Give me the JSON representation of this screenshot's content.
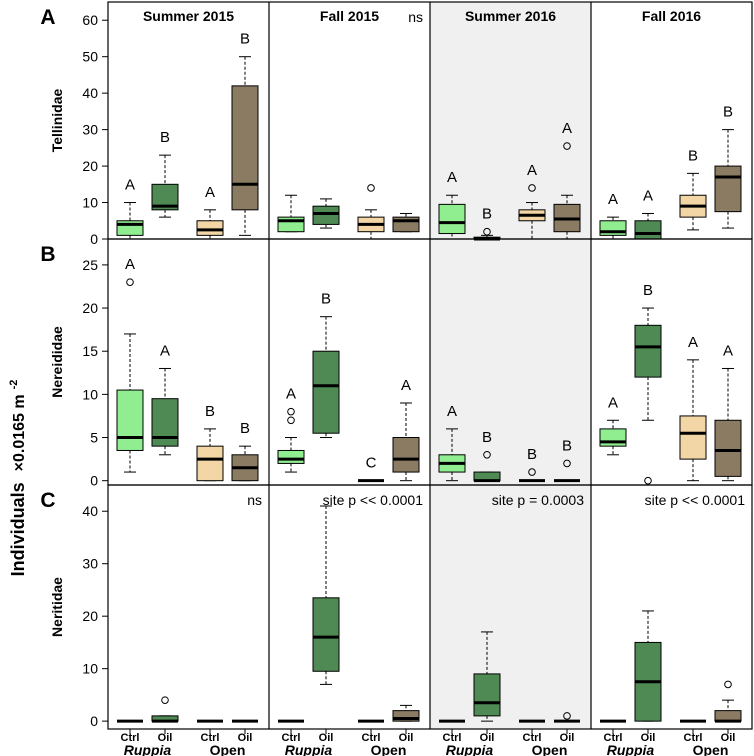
{
  "chart_data": {
    "type": "box",
    "ylabel_main": "Individuals",
    "ylabel_units": "×0.0165 m",
    "ylabel_exponent": "-2",
    "columns": [
      "Summer 2015",
      "Fall 2015",
      "Summer 2016",
      "Fall 2016"
    ],
    "categories": [
      "Ctrl",
      "Oil",
      "Ctrl",
      "Oil"
    ],
    "groups": [
      "Ruppia",
      "Open"
    ],
    "colors": {
      "ruppia_ctrl": "#90ee90",
      "ruppia_oil": "#4f8a55",
      "open_ctrl": "#f2d6a5",
      "open_oil": "#8b7b63",
      "shaded_bg": "#f0f0f0"
    },
    "panels": [
      {
        "letter": "A",
        "family": "Tellinidae",
        "ylim": [
          0,
          65
        ],
        "yticks": [
          0,
          10,
          20,
          30,
          40,
          50,
          60
        ],
        "annotations": [
          "",
          "ns",
          "",
          ""
        ],
        "boxes": [
          [
            {
              "whislo": 0,
              "q1": 1,
              "med": 4,
              "q3": 5,
              "whishi": 10,
              "fliers": [],
              "sig": "A"
            },
            {
              "whislo": 6,
              "q1": 8,
              "med": 9,
              "q3": 15,
              "whishi": 23,
              "fliers": [],
              "sig": "B"
            },
            {
              "whislo": 0,
              "q1": 1,
              "med": 2.5,
              "q3": 5,
              "whishi": 8,
              "fliers": [],
              "sig": "A"
            },
            {
              "whislo": 1,
              "q1": 8,
              "med": 15,
              "q3": 42,
              "whishi": 50,
              "fliers": [],
              "sig": "B"
            }
          ],
          [
            {
              "whislo": 2,
              "q1": 2,
              "med": 5,
              "q3": 6,
              "whishi": 12,
              "fliers": [],
              "sig": ""
            },
            {
              "whislo": 3,
              "q1": 4,
              "med": 7,
              "q3": 9,
              "whishi": 11,
              "fliers": [],
              "sig": ""
            },
            {
              "whislo": 0,
              "q1": 2,
              "med": 4,
              "q3": 6,
              "whishi": 8,
              "fliers": [
                14
              ],
              "sig": ""
            },
            {
              "whislo": 2,
              "q1": 2,
              "med": 5,
              "q3": 6,
              "whishi": 7,
              "fliers": [],
              "sig": ""
            }
          ],
          [
            {
              "whislo": 0,
              "q1": 1.5,
              "med": 4.5,
              "q3": 9.5,
              "whishi": 12,
              "fliers": [],
              "sig": "A"
            },
            {
              "whislo": 0,
              "q1": 0,
              "med": 0,
              "q3": 0.5,
              "whishi": 1,
              "fliers": [
                2
              ],
              "sig": "B"
            },
            {
              "whislo": 0,
              "q1": 5,
              "med": 6.5,
              "q3": 8,
              "whishi": 10,
              "fliers": [
                14
              ],
              "sig": "A"
            },
            {
              "whislo": 0,
              "q1": 2,
              "med": 5.5,
              "q3": 9.5,
              "whishi": 12,
              "fliers": [
                25.5
              ],
              "sig": "A"
            }
          ],
          [
            {
              "whislo": 0,
              "q1": 1,
              "med": 2,
              "q3": 5,
              "whishi": 6,
              "fliers": [],
              "sig": "A"
            },
            {
              "whislo": 0,
              "q1": 0,
              "med": 1.5,
              "q3": 5,
              "whishi": 7,
              "fliers": [],
              "sig": "A"
            },
            {
              "whislo": 2.5,
              "q1": 6,
              "med": 9,
              "q3": 12,
              "whishi": 18,
              "fliers": [],
              "sig": "B"
            },
            {
              "whislo": 3,
              "q1": 7.5,
              "med": 17,
              "q3": 20,
              "whishi": 30,
              "fliers": [],
              "sig": "B"
            }
          ]
        ]
      },
      {
        "letter": "B",
        "family": "Nereididae",
        "ylim": [
          -0.5,
          28
        ],
        "yticks": [
          0,
          5,
          10,
          15,
          20,
          25
        ],
        "annotations": [
          "",
          "",
          "",
          ""
        ],
        "boxes": [
          [
            {
              "whislo": 1,
              "q1": 3.5,
              "med": 5,
              "q3": 10.5,
              "whishi": 17,
              "fliers": [
                23
              ],
              "sig": "A"
            },
            {
              "whislo": 3,
              "q1": 4,
              "med": 5,
              "q3": 9.5,
              "whishi": 13,
              "fliers": [],
              "sig": "A"
            },
            {
              "whislo": 0,
              "q1": 0,
              "med": 2.5,
              "q3": 4,
              "whishi": 6,
              "fliers": [],
              "sig": "B"
            },
            {
              "whislo": 0,
              "q1": 0,
              "med": 1.5,
              "q3": 3,
              "whishi": 4,
              "fliers": [],
              "sig": "B"
            }
          ],
          [
            {
              "whislo": 1,
              "q1": 2,
              "med": 2.5,
              "q3": 3.5,
              "whishi": 5,
              "fliers": [
                7,
                8
              ],
              "sig": "A"
            },
            {
              "whislo": 5,
              "q1": 5.5,
              "med": 11,
              "q3": 15,
              "whishi": 19,
              "fliers": [],
              "sig": "B"
            },
            {
              "whislo": 0,
              "q1": 0,
              "med": 0,
              "q3": 0,
              "whishi": 0,
              "fliers": [],
              "sig": "C"
            },
            {
              "whislo": 0,
              "q1": 1,
              "med": 2.5,
              "q3": 5,
              "whishi": 9,
              "fliers": [],
              "sig": "A"
            }
          ],
          [
            {
              "whislo": 0,
              "q1": 1,
              "med": 2,
              "q3": 3,
              "whishi": 6,
              "fliers": [],
              "sig": "A"
            },
            {
              "whislo": 0,
              "q1": 0,
              "med": 0,
              "q3": 1,
              "whishi": 1,
              "fliers": [
                3
              ],
              "sig": "B"
            },
            {
              "whislo": 0,
              "q1": 0,
              "med": 0,
              "q3": 0,
              "whishi": 0,
              "fliers": [
                1
              ],
              "sig": "B"
            },
            {
              "whislo": 0,
              "q1": 0,
              "med": 0,
              "q3": 0,
              "whishi": 0,
              "fliers": [
                2
              ],
              "sig": "B"
            }
          ],
          [
            {
              "whislo": 3,
              "q1": 4,
              "med": 4.5,
              "q3": 6,
              "whishi": 7,
              "fliers": [],
              "sig": "A"
            },
            {
              "whislo": 7,
              "q1": 12,
              "med": 15.5,
              "q3": 18,
              "whishi": 20,
              "fliers": [
                0
              ],
              "sig": "B"
            },
            {
              "whislo": 0,
              "q1": 2.5,
              "med": 5.5,
              "q3": 7.5,
              "whishi": 14,
              "fliers": [],
              "sig": "A"
            },
            {
              "whislo": 0,
              "q1": 0.5,
              "med": 3.5,
              "q3": 7,
              "whishi": 13,
              "fliers": [],
              "sig": "A"
            }
          ]
        ]
      },
      {
        "letter": "C",
        "family": "Neritidae",
        "ylim": [
          -1.5,
          45
        ],
        "yticks": [
          0,
          10,
          20,
          30,
          40
        ],
        "annotations": [
          "ns",
          "site p << 0.0001",
          "site p = 0.0003",
          "site p << 0.0001"
        ],
        "boxes": [
          [
            {
              "whislo": 0,
              "q1": 0,
              "med": 0,
              "q3": 0,
              "whishi": 0,
              "fliers": [],
              "sig": ""
            },
            {
              "whislo": 0,
              "q1": 0,
              "med": 0,
              "q3": 1,
              "whishi": 1,
              "fliers": [
                4
              ],
              "sig": ""
            },
            {
              "whislo": 0,
              "q1": 0,
              "med": 0,
              "q3": 0,
              "whishi": 0,
              "fliers": [],
              "sig": ""
            },
            {
              "whislo": 0,
              "q1": 0,
              "med": 0,
              "q3": 0,
              "whishi": 0,
              "fliers": [],
              "sig": ""
            }
          ],
          [
            {
              "whislo": 0,
              "q1": 0,
              "med": 0,
              "q3": 0,
              "whishi": 0,
              "fliers": [],
              "sig": ""
            },
            {
              "whislo": 7,
              "q1": 9.5,
              "med": 16,
              "q3": 23.5,
              "whishi": 41,
              "fliers": [],
              "sig": ""
            },
            {
              "whislo": 0,
              "q1": 0,
              "med": 0,
              "q3": 0,
              "whishi": 0,
              "fliers": [],
              "sig": ""
            },
            {
              "whislo": 0,
              "q1": 0,
              "med": 0.5,
              "q3": 2,
              "whishi": 3,
              "fliers": [],
              "sig": ""
            }
          ],
          [
            {
              "whislo": 0,
              "q1": 0,
              "med": 0,
              "q3": 0,
              "whishi": 0,
              "fliers": [],
              "sig": ""
            },
            {
              "whislo": 0,
              "q1": 1,
              "med": 3.5,
              "q3": 9,
              "whishi": 17,
              "fliers": [],
              "sig": ""
            },
            {
              "whislo": 0,
              "q1": 0,
              "med": 0,
              "q3": 0,
              "whishi": 0,
              "fliers": [],
              "sig": ""
            },
            {
              "whislo": 0,
              "q1": 0,
              "med": 0,
              "q3": 0,
              "whishi": 0,
              "fliers": [
                1
              ],
              "sig": ""
            }
          ],
          [
            {
              "whislo": 0,
              "q1": 0,
              "med": 0,
              "q3": 0,
              "whishi": 0,
              "fliers": [],
              "sig": ""
            },
            {
              "whislo": 0,
              "q1": 0,
              "med": 7.5,
              "q3": 15,
              "whishi": 21,
              "fliers": [],
              "sig": ""
            },
            {
              "whislo": 0,
              "q1": 0,
              "med": 0,
              "q3": 0,
              "whishi": 0,
              "fliers": [],
              "sig": ""
            },
            {
              "whislo": 0,
              "q1": 0,
              "med": 0,
              "q3": 2,
              "whishi": 4,
              "fliers": [
                7
              ],
              "sig": ""
            }
          ]
        ]
      }
    ]
  }
}
